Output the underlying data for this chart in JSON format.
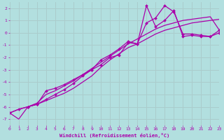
{
  "xlabel": "Windchill (Refroidissement éolien,°C)",
  "xlim": [
    0,
    23
  ],
  "ylim": [
    -7.5,
    2.5
  ],
  "xticks": [
    0,
    1,
    2,
    3,
    4,
    5,
    6,
    7,
    8,
    9,
    10,
    11,
    12,
    13,
    14,
    15,
    16,
    17,
    18,
    19,
    20,
    21,
    22,
    23
  ],
  "yticks": [
    -7,
    -6,
    -5,
    -4,
    -3,
    -2,
    -1,
    0,
    1,
    2
  ],
  "bg_color": "#b2dfdf",
  "grid_color": "#aacccc",
  "line_color": "#aa00aa",
  "lines": [
    {
      "x": [
        0,
        1,
        2,
        3,
        4,
        5,
        6,
        7,
        8,
        9,
        10,
        11,
        12,
        13,
        14,
        15,
        16,
        17,
        18,
        19,
        20,
        21,
        22,
        23
      ],
      "y": [
        -6.5,
        -6.2,
        -6.0,
        -5.8,
        -5.5,
        -5.2,
        -4.9,
        -4.5,
        -4.0,
        -3.5,
        -2.8,
        -2.2,
        -1.7,
        -1.2,
        -0.9,
        -0.5,
        -0.1,
        0.2,
        0.4,
        0.6,
        0.8,
        0.9,
        1.0,
        1.1
      ],
      "marker": false,
      "lw": 0.9
    },
    {
      "x": [
        0,
        1,
        2,
        3,
        4,
        5,
        6,
        7,
        8,
        9,
        10,
        11,
        12,
        13,
        14,
        15,
        16,
        17,
        18,
        19,
        20,
        21,
        22,
        23
      ],
      "y": [
        -6.5,
        -7.0,
        -6.0,
        -5.7,
        -5.0,
        -4.7,
        -4.3,
        -3.9,
        -3.4,
        -2.9,
        -2.4,
        -1.9,
        -1.4,
        -0.9,
        -0.5,
        -0.1,
        0.3,
        0.6,
        0.8,
        1.0,
        1.1,
        1.2,
        1.3,
        0.2
      ],
      "marker": false,
      "lw": 0.9
    },
    {
      "x": [
        2,
        3,
        4,
        5,
        6,
        7,
        8,
        9,
        10,
        11,
        12,
        13,
        14,
        15,
        16,
        17,
        18,
        19,
        20,
        21,
        22,
        23
      ],
      "y": [
        -6.0,
        -5.8,
        -5.4,
        -5.0,
        -4.6,
        -4.1,
        -3.5,
        -3.0,
        -2.2,
        -1.8,
        -1.3,
        -0.7,
        -0.9,
        2.2,
        0.5,
        1.0,
        1.8,
        -0.3,
        -0.2,
        -0.3,
        -0.3,
        0.2
      ],
      "marker": true,
      "lw": 0.9
    },
    {
      "x": [
        0,
        1,
        2,
        3,
        4,
        5,
        6,
        7,
        8,
        9,
        10,
        11,
        12,
        13,
        14,
        15,
        16,
        17,
        18,
        19,
        20,
        21,
        22,
        23
      ],
      "y": [
        -6.5,
        -6.2,
        -6.0,
        -5.8,
        -4.7,
        -4.5,
        -4.2,
        -3.8,
        -3.4,
        -3.0,
        -2.6,
        -2.0,
        -1.8,
        -0.8,
        -0.9,
        0.8,
        1.2,
        2.2,
        1.7,
        -0.1,
        -0.1,
        -0.2,
        -0.3,
        0.0
      ],
      "marker": true,
      "lw": 0.9
    }
  ]
}
